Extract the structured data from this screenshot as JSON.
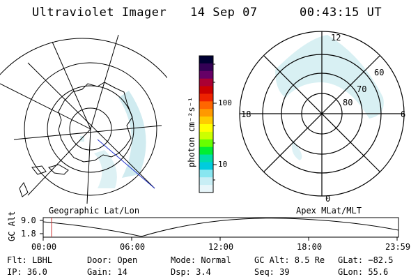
{
  "header": {
    "title": "Ultraviolet Imager",
    "date": "14 Sep 07",
    "time": "00:43:15 UT"
  },
  "colorbar": {
    "unit_label": "photon cm⁻²s⁻¹",
    "ticks": [
      "100",
      "10"
    ],
    "colors": [
      "#000033",
      "#330055",
      "#660066",
      "#aa0033",
      "#cc0000",
      "#ee2200",
      "#ff6600",
      "#ff9900",
      "#ffcc00",
      "#ffff00",
      "#ccff00",
      "#66ff00",
      "#00ee33",
      "#00ddaa",
      "#00ccdd",
      "#88e6f0",
      "#c8eef5",
      "#e8f6fa"
    ]
  },
  "left_map": {
    "caption": "Geographic Lat/Lon"
  },
  "right_map": {
    "caption": "Apex MLat/MLT",
    "mlt_labels": {
      "top": "12",
      "bottom": "0",
      "left": "18",
      "right": "6"
    },
    "lat_labels": [
      "60",
      "70",
      "80"
    ]
  },
  "altitude_plot": {
    "ylabel": "GC Alt",
    "yticks": [
      "9.0",
      "1.8"
    ],
    "xticks": [
      "00:00",
      "06:00",
      "12:00",
      "18:00",
      "23:59"
    ],
    "marker_color": "#cc3333"
  },
  "status": {
    "row1": [
      "Flt: LBHL",
      "Door: Open",
      "Mode: Normal",
      "GC Alt: 8.5 Re",
      "GLat: −82.5"
    ],
    "row2": [
      "IP: 36.0",
      "Gain: 14",
      "Dsp:    3.4",
      "Seq: 39",
      "GLon:  55.6"
    ]
  }
}
